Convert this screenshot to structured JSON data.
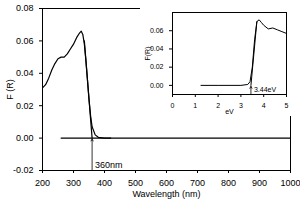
{
  "chart_data": [
    {
      "type": "line",
      "x_label": "Wavelength (nm)",
      "y_label": "F (R)",
      "xlim": [
        200,
        1000
      ],
      "xticks": [
        200,
        300,
        400,
        500,
        600,
        700,
        800,
        900,
        1000
      ],
      "ylim": [
        -0.02,
        0.08
      ],
      "yticks": [
        {
          "value": -0.02,
          "label": "-0.02"
        },
        {
          "value": 0,
          "label": "0.00"
        },
        {
          "value": 0.02,
          "label": "0.02"
        },
        {
          "value": 0.04,
          "label": "0.04"
        },
        {
          "value": 0.06,
          "label": "0.06"
        },
        {
          "value": 0.08,
          "label": "0.08"
        }
      ],
      "series": [
        {
          "color": "#000000",
          "line_style": "solid",
          "x": [
            200,
            210,
            220,
            230,
            240,
            250,
            260,
            270,
            280,
            290,
            300,
            310,
            320,
            325,
            330,
            335,
            340,
            345,
            350,
            355,
            360,
            370,
            380,
            400,
            500,
            600,
            700,
            800,
            900,
            1000
          ],
          "values": [
            0.031,
            0.033,
            0.037,
            0.042,
            0.046,
            0.049,
            0.05,
            0.05,
            0.052,
            0.055,
            0.058,
            0.062,
            0.065,
            0.066,
            0.064,
            0.058,
            0.048,
            0.036,
            0.024,
            0.014,
            0.007,
            0.002,
            0.0005,
            0,
            0,
            0,
            0,
            0,
            0,
            0
          ]
        },
        {
          "color": "#000000",
          "line_style": "solid",
          "x": [
            335,
            360
          ],
          "values": [
            0.06,
            0
          ]
        },
        {
          "color": "#000000",
          "line_style": "solid",
          "x": [
            260,
            420
          ],
          "values": [
            0,
            0
          ]
        }
      ],
      "annotations": [
        {
          "text": "360nm",
          "x": 360,
          "y": 0
        }
      ],
      "grid": false
    },
    {
      "type": "line",
      "x_label": "eV",
      "y_label": "F(R)",
      "xlim": [
        0,
        5
      ],
      "xticks": [
        0,
        1,
        2,
        3,
        4,
        5
      ],
      "ylim": [
        -0.01,
        0.08
      ],
      "yticks": [
        {
          "value": 0,
          "label": "0.00"
        },
        {
          "value": 0.02,
          "label": "0.02"
        },
        {
          "value": 0.04,
          "label": "0.04"
        },
        {
          "value": 0.06,
          "label": "0.06"
        }
      ],
      "series": [
        {
          "color": "#000000",
          "line_style": "solid",
          "x": [
            1.25,
            2,
            3,
            3.3,
            3.4,
            3.5,
            3.6,
            3.7,
            3.8,
            3.9,
            4,
            4.2,
            4.4,
            4.6,
            4.8,
            5
          ],
          "values": [
            0,
            0,
            0,
            0.001,
            0.004,
            0.02,
            0.05,
            0.07,
            0.072,
            0.069,
            0.066,
            0.062,
            0.063,
            0.061,
            0.059,
            0.057
          ]
        },
        {
          "color": "#000000",
          "line_style": "solid",
          "x": [
            3.44,
            3.7
          ],
          "values": [
            0,
            0.07
          ]
        }
      ],
      "annotations": [
        {
          "text": "3.44eV",
          "x": 3.44,
          "y": 0
        }
      ],
      "grid": false
    }
  ]
}
